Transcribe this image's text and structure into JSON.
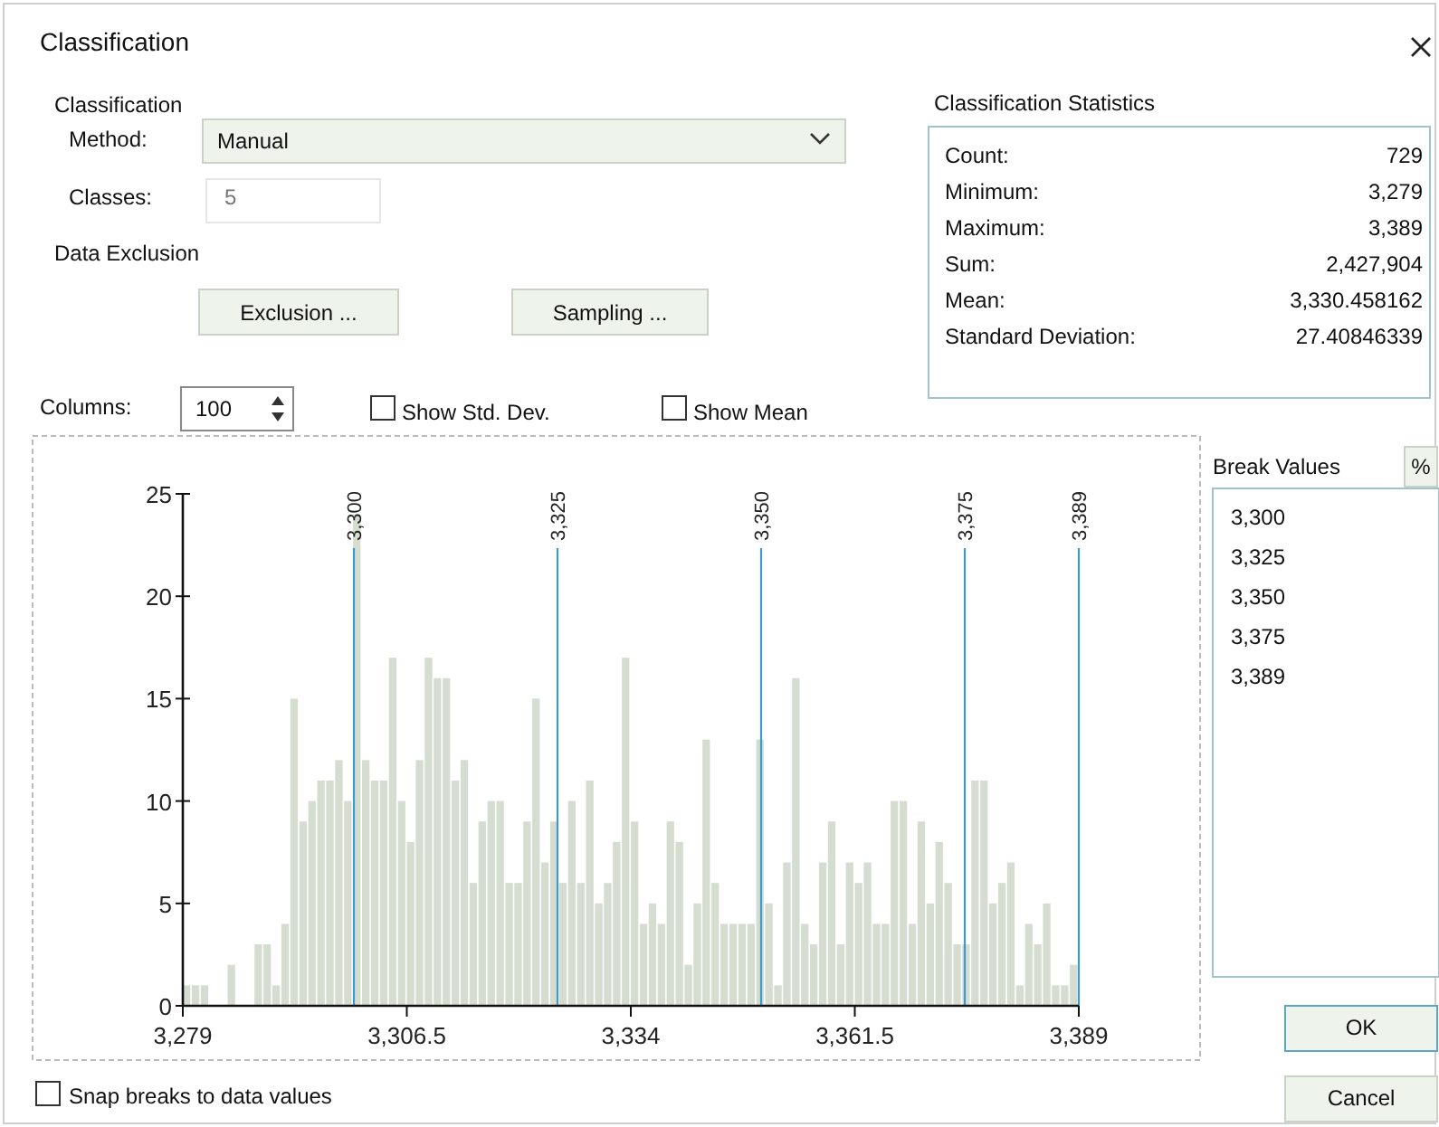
{
  "chart_data": [
    {
      "type": "other",
      "title": "Classification",
      "annotations": [
        "Classification",
        "Method:",
        "Manual",
        "Classes:",
        "5",
        "Data Exclusion",
        "Exclusion ...",
        "Sampling ...",
        "Columns:",
        "100",
        "Show Std. Dev.",
        "Show Mean",
        "Classification Statistics",
        "Count:",
        "729",
        "Minimum:",
        "3,279",
        "Maximum:",
        "3,389",
        "Sum:",
        "2,427,904",
        "Mean:",
        "3,330.458162",
        "Standard Deviation:",
        "27.40846339",
        "Break Values",
        "%",
        "OK",
        "Cancel",
        "Snap breaks to data values"
      ]
    },
    {
      "type": "histogram",
      "color": "#d5ddd0",
      "bins": [
        3279,
        3280.1,
        3281.2,
        3282.3,
        3283.4,
        3284.5,
        3285.6,
        3286.7,
        3287.8,
        3288.9,
        3290,
        3291.1,
        3292.2,
        3293.3,
        3294.4,
        3295.5,
        3296.6,
        3297.7,
        3298.8,
        3299.9,
        3301,
        3302.1,
        3303.2,
        3304.3,
        3305.4,
        3306.5,
        3307.6,
        3308.7,
        3309.8,
        3310.9,
        3312,
        3313.1,
        3314.2,
        3315.3,
        3316.4,
        3317.5,
        3318.6,
        3319.7,
        3320.8,
        3321.9,
        3323,
        3324.1,
        3325.2,
        3326.3,
        3327.4,
        3328.5,
        3329.6,
        3330.7,
        3331.8,
        3332.9,
        3334,
        3335.1,
        3336.2,
        3337.3,
        3338.4,
        3339.5,
        3340.6,
        3341.7,
        3342.8,
        3343.9,
        3345,
        3346.1,
        3347.2,
        3348.3,
        3349.4,
        3350.5,
        3351.6,
        3352.7,
        3353.8,
        3354.9,
        3356,
        3357.1,
        3358.2,
        3359.3,
        3360.4,
        3361.5,
        3362.6,
        3363.7,
        3364.8,
        3365.9,
        3367,
        3368.1,
        3369.2,
        3370.3,
        3371.4,
        3372.5,
        3373.6,
        3374.7,
        3375.8,
        3376.9,
        3378,
        3379.1,
        3380.2,
        3381.3,
        3382.4,
        3383.5,
        3384.6,
        3385.7,
        3386.8,
        3387.9,
        3389
      ],
      "values": [
        1,
        1,
        1,
        0,
        0,
        2,
        0,
        0,
        3,
        3,
        1,
        4,
        15,
        9,
        10,
        11,
        11,
        12,
        10,
        24,
        12,
        11,
        11,
        17,
        10,
        8,
        12,
        17,
        16,
        16,
        11,
        12,
        6,
        9,
        10,
        10,
        6,
        6,
        9,
        15,
        7,
        9,
        6,
        10,
        6,
        11,
        5,
        6,
        8,
        17,
        9,
        4,
        5,
        4,
        9,
        8,
        2,
        5,
        13,
        6,
        4,
        4,
        4,
        4,
        13,
        5,
        1,
        7,
        16,
        4,
        3,
        7,
        9,
        3,
        7,
        6,
        7,
        4,
        4,
        10,
        10,
        4,
        9,
        5,
        8,
        6,
        3,
        3,
        11,
        11,
        5,
        6,
        7,
        1,
        4,
        3,
        5,
        1,
        1,
        2
      ],
      "xlim": [
        3279,
        3389
      ],
      "xticks": [
        {
          "value": 3279,
          "label": "3,279"
        },
        {
          "value": 3306.5,
          "label": "3,306.5"
        },
        {
          "value": 3334,
          "label": "3,334"
        },
        {
          "value": 3361.5,
          "label": "3,361.5"
        },
        {
          "value": 3389,
          "label": "3,389"
        }
      ],
      "ylim": [
        0,
        25
      ],
      "yticks": [
        0,
        5,
        10,
        15,
        20,
        25
      ],
      "annotations": [
        "3,300",
        "3,325",
        "3,350",
        "3,375",
        "3,389"
      ],
      "ref_lines": [
        {
          "axis": "x",
          "value": 3300,
          "label": "3,300",
          "color": "#3a9bd0"
        },
        {
          "axis": "x",
          "value": 3325,
          "label": "3,325",
          "color": "#3a9bd0"
        },
        {
          "axis": "x",
          "value": 3350,
          "label": "3,350",
          "color": "#3a9bd0"
        },
        {
          "axis": "x",
          "value": 3375,
          "label": "3,375",
          "color": "#3a9bd0"
        },
        {
          "axis": "x",
          "value": 3389,
          "label": "3,389",
          "color": "#3a9bd0"
        }
      ]
    }
  ]
}
